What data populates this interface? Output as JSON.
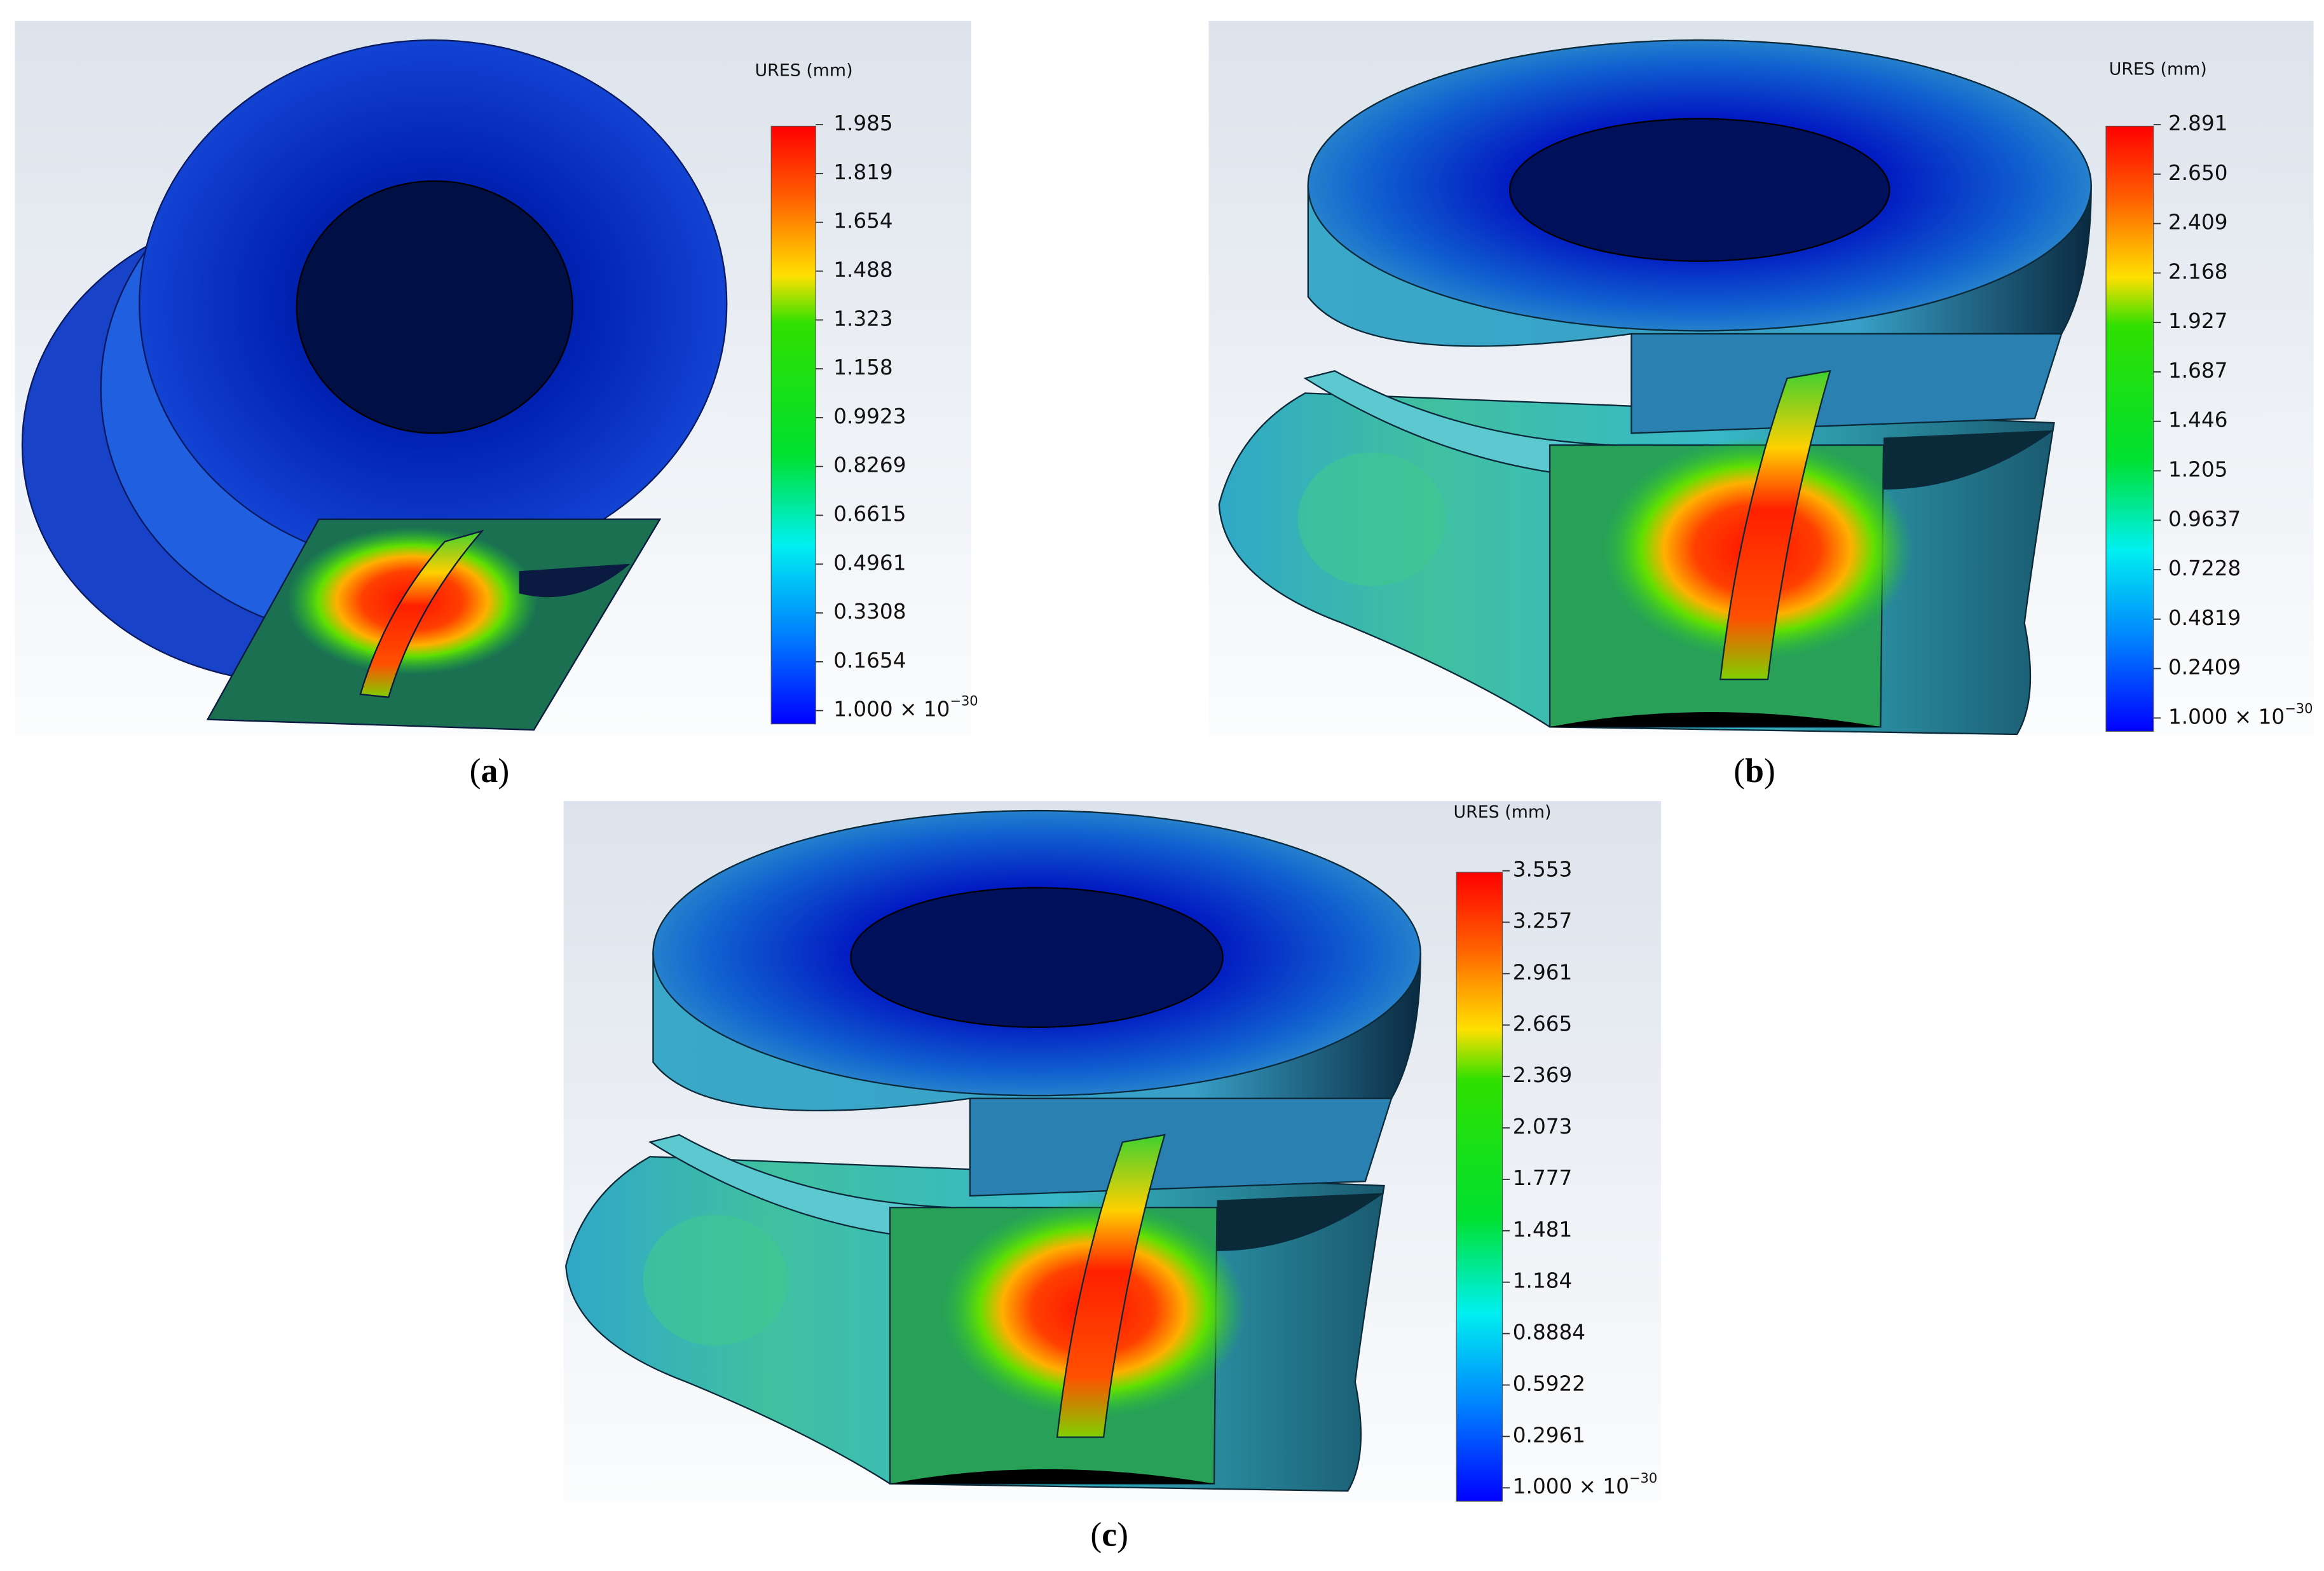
{
  "panels": [
    {
      "caption": {
        "open": "(",
        "letter": "a",
        "close": ")"
      },
      "legend": {
        "title": "URES (mm)",
        "labels": [
          "1.985",
          "1.819",
          "1.654",
          "1.488",
          "1.323",
          "1.158",
          "0.9923",
          "0.8269",
          "0.6615",
          "0.4961",
          "0.3308",
          "0.1654"
        ],
        "min_label": {
          "base": "1.000 × 10",
          "exponent": "−30"
        }
      }
    },
    {
      "caption": {
        "open": "(",
        "letter": "b",
        "close": ")"
      },
      "legend": {
        "title": "URES (mm)",
        "labels": [
          "2.891",
          "2.650",
          "2.409",
          "2.168",
          "1.927",
          "1.687",
          "1.446",
          "1.205",
          "0.9637",
          "0.7228",
          "0.4819",
          "0.2409"
        ],
        "min_label": {
          "base": "1.000 × 10",
          "exponent": "−30"
        }
      }
    },
    {
      "caption": {
        "open": "(",
        "letter": "c",
        "close": ")"
      },
      "legend": {
        "title": "URES (mm)",
        "labels": [
          "3.553",
          "3.257",
          "2.961",
          "2.665",
          "2.369",
          "2.073",
          "1.777",
          "1.481",
          "1.184",
          "0.8884",
          "0.5922",
          "0.2961"
        ],
        "min_label": {
          "base": "1.000 × 10",
          "exponent": "−30"
        }
      }
    }
  ]
}
